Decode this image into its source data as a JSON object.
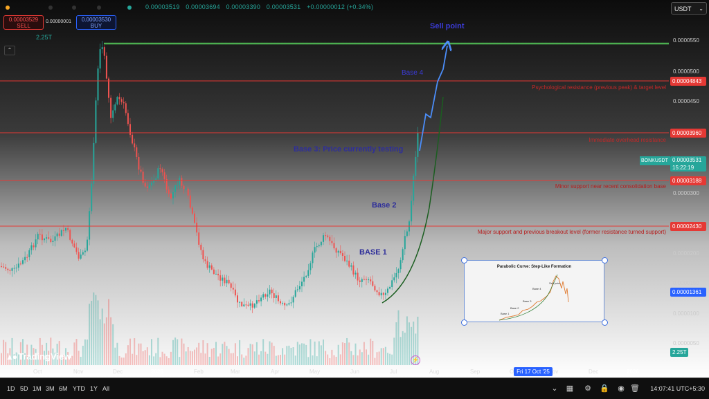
{
  "topbar": {
    "ohlc": [
      "0.00003519",
      "0.00003694",
      "0.00003390",
      "0.00003531",
      "+0.00000012 (+0.34%)"
    ],
    "currency": "USDT"
  },
  "trade": {
    "sell_price": "0.00003529",
    "sell_label": "SELL",
    "spread": "0.00000001",
    "buy_price": "0.00003530",
    "buy_label": "BUY"
  },
  "volume_label": "2.25T",
  "price_axis": {
    "ticks": [
      "0.0000550",
      "0.0000500",
      "0.0000450",
      "0.0000300",
      "0.0000200",
      "0.0000150",
      "0.0000100",
      "0.0000050"
    ],
    "current_symbol": "BONKUSDT",
    "current_price": "0.00003531",
    "countdown": "15:22:19",
    "volume_tag": "2.25T",
    "tags": [
      {
        "price": "0.00004843",
        "color": "#e53935"
      },
      {
        "price": "0.00003960",
        "color": "#e53935"
      },
      {
        "price": "0.00003188",
        "color": "#e53935"
      },
      {
        "price": "0.00002430",
        "color": "#e53935"
      },
      {
        "price": "0.00001361",
        "color": "#2962ff"
      }
    ]
  },
  "annotations": {
    "sell_point": "Sell point",
    "base4": "Base 4",
    "base3": "Base 3: Price currently testing",
    "base2": "Base 2",
    "base1": "BASE 1",
    "r_high": "Psychological resistance (previous peak) & target level",
    "r_immediate": "Immediate overhead resistance",
    "s_minor": "Minor support near recent consolidation base",
    "s_major": "Major support and previous breakout level (former resistance turned support)"
  },
  "inset": {
    "title": "Parabolic Curve: Step-Like Formation",
    "labels": [
      "Base 1",
      "Base 2",
      "Base 3",
      "Base 4",
      "Sell point"
    ]
  },
  "time_axis": {
    "labels": [
      "Oct",
      "Nov",
      "Dec",
      "2025",
      "Feb",
      "Mar",
      "Apr",
      "May",
      "Jun",
      "Jul",
      "Aug",
      "Sep",
      "Oct",
      "Nov",
      "Dec",
      "2026"
    ],
    "hover_date": "Fri 17 Oct '25"
  },
  "bottom": {
    "timeframes": [
      "1D",
      "5D",
      "1M",
      "3M",
      "6M",
      "YTD",
      "1Y",
      "All"
    ],
    "clock": "14:07:41 UTC+5:30"
  },
  "brand": "TradingView",
  "colors": {
    "up": "#26a69a",
    "down": "#ef5350",
    "resistance": "#e53935",
    "target": "#4caf50",
    "annotation": "#3b3bd6"
  }
}
